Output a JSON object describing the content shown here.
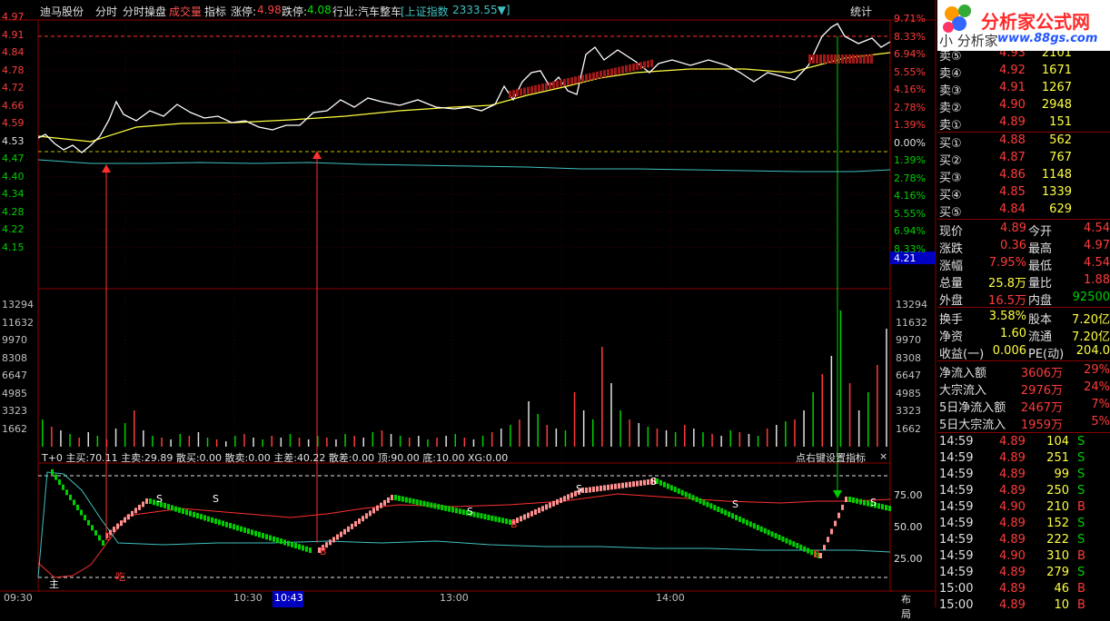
{
  "header": {
    "stock_name": "迪马股份",
    "menu_fenshi": "分时",
    "menu_caopan": "分时操盘",
    "menu_chengjiao": "成交量",
    "menu_zhibiao": "指标",
    "limit_up_label": "涨停:",
    "limit_up_value": "4.98",
    "limit_down_label": "跌停:",
    "limit_down_value": "4.08",
    "industry": "行业:汽车整车",
    "index_name": "[上证指数",
    "index_value": "2333.55▼]",
    "stats_button": "统计"
  },
  "watermark": {
    "title": "分析家公式网",
    "url": "www.88gs.com",
    "lettering": "小 分析家"
  },
  "price_axis_left": [
    "4.97",
    "4.91",
    "4.84",
    "4.78",
    "4.72",
    "4.66",
    "4.59",
    "4.53",
    "4.47",
    "4.40",
    "4.34",
    "4.28",
    "4.22",
    "4.15"
  ],
  "price_axis_right": [
    "9.71%",
    "8.33%",
    "6.94%",
    "5.55%",
    "4.16%",
    "2.78%",
    "1.39%",
    "0.00%",
    "1.39%",
    "2.78%",
    "4.16%",
    "5.55%",
    "6.94%",
    "8.33%"
  ],
  "current_price_tag": "4.21",
  "volume_axis": [
    "13294",
    "11632",
    "9970",
    "8308",
    "6647",
    "4985",
    "3323",
    "1662"
  ],
  "indicator": {
    "header": "T+0  主买:70.11  主卖:29.89  散买:0.00  散卖:0.00  主差:40.22  散差:0.00  顶:90.00  底:10.00  XG:0.00",
    "settings": "点右键设置指标",
    "close": "×",
    "axis": [
      "75.00",
      "50.00",
      "25.00"
    ],
    "marker_main": "主",
    "marker_s": "S",
    "marker_b": "B",
    "marker_fill": "吃"
  },
  "time_axis": {
    "t0930": "09:30",
    "t1030": "10:30",
    "t1043": "10:43",
    "t1300": "13:00",
    "t1400": "14:00",
    "layout": "布局"
  },
  "order_book": {
    "sell": [
      {
        "label": "卖⑤",
        "price": "4.93",
        "vol": "2101"
      },
      {
        "label": "卖④",
        "price": "4.92",
        "vol": "1671"
      },
      {
        "label": "卖③",
        "price": "4.91",
        "vol": "1267"
      },
      {
        "label": "卖②",
        "price": "4.90",
        "vol": "2948"
      },
      {
        "label": "卖①",
        "price": "4.89",
        "vol": "151"
      }
    ],
    "buy": [
      {
        "label": "买①",
        "price": "4.88",
        "vol": "562"
      },
      {
        "label": "买②",
        "price": "4.87",
        "vol": "767"
      },
      {
        "label": "买③",
        "price": "4.86",
        "vol": "1148"
      },
      {
        "label": "买④",
        "price": "4.85",
        "vol": "1339"
      },
      {
        "label": "买⑤",
        "price": "4.84",
        "vol": "629"
      }
    ]
  },
  "quote": [
    {
      "l1": "现价",
      "v1": "4.89",
      "l2": "今开",
      "v2": "4.54"
    },
    {
      "l1": "涨跌",
      "v1": "0.36",
      "l2": "最高",
      "v2": "4.97"
    },
    {
      "l1": "涨幅",
      "v1": "7.95%",
      "l2": "最低",
      "v2": "4.54"
    },
    {
      "l1": "总量",
      "v1": "25.8万",
      "l2": "量比",
      "v2": "1.88"
    },
    {
      "l1": "外盘",
      "v1": "16.5万",
      "l2": "内盘",
      "v2": "92500"
    }
  ],
  "fundamentals": [
    {
      "l1": "换手",
      "v1": "3.58%",
      "l2": "股本",
      "v2": "7.20亿"
    },
    {
      "l1": "净资",
      "v1": "1.60",
      "l2": "流通",
      "v2": "7.20亿"
    },
    {
      "l1": "收益(一)",
      "v1": "0.006",
      "l2": "PE(动)",
      "v2": "204.0"
    }
  ],
  "flows": [
    {
      "label": "净流入额",
      "value": "3606万",
      "pct": "29%"
    },
    {
      "label": "大宗流入",
      "value": "2976万",
      "pct": "24%"
    },
    {
      "label": "5日净流入额",
      "value": "2467万",
      "pct": "7%"
    },
    {
      "label": "5日大宗流入",
      "value": "1959万",
      "pct": "5%"
    }
  ],
  "ticks": [
    {
      "time": "14:59",
      "price": "4.89",
      "vol": "104",
      "side": "S"
    },
    {
      "time": "14:59",
      "price": "4.89",
      "vol": "251",
      "side": "S"
    },
    {
      "time": "14:59",
      "price": "4.89",
      "vol": "99",
      "side": "S"
    },
    {
      "time": "14:59",
      "price": "4.89",
      "vol": "250",
      "side": "S"
    },
    {
      "time": "14:59",
      "price": "4.90",
      "vol": "210",
      "side": "B"
    },
    {
      "time": "14:59",
      "price": "4.89",
      "vol": "152",
      "side": "S"
    },
    {
      "time": "14:59",
      "price": "4.89",
      "vol": "222",
      "side": "S"
    },
    {
      "time": "14:59",
      "price": "4.90",
      "vol": "310",
      "side": "B"
    },
    {
      "time": "14:59",
      "price": "4.89",
      "vol": "279",
      "side": "S"
    },
    {
      "time": "15:00",
      "price": "4.89",
      "vol": "46",
      "side": "B"
    },
    {
      "time": "15:00",
      "price": "4.89",
      "vol": "10",
      "side": "B"
    }
  ],
  "colors": {
    "up": "#ff3b3b",
    "down": "#00d000",
    "yellow": "#ffff40",
    "cyan": "#40c0c0",
    "grid": "#8b0000"
  }
}
